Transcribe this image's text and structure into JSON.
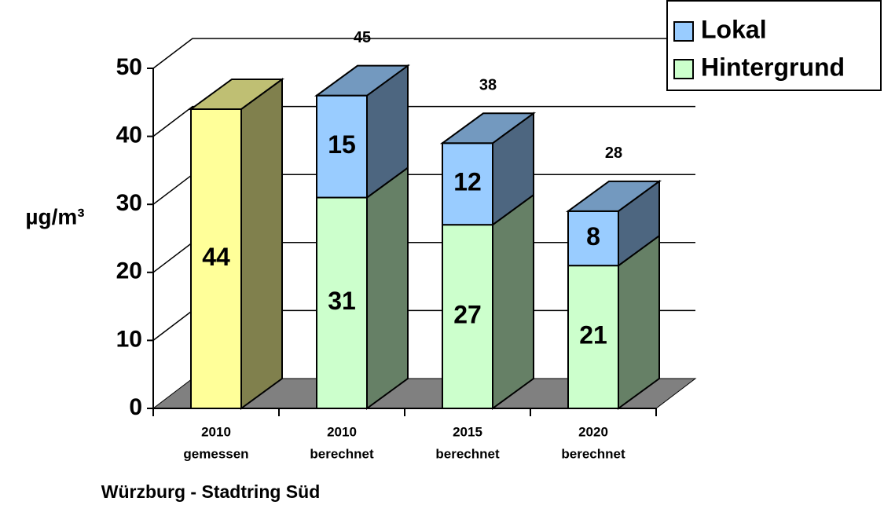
{
  "chart_data": {
    "type": "bar3d_stacked",
    "title": "Würzburg - Stadtring Süd",
    "ylabel": "µg/m³",
    "categories": [
      [
        "2010",
        "gemessen"
      ],
      [
        "2010",
        "berechnet"
      ],
      [
        "2015",
        "berechnet"
      ],
      [
        "2020",
        "berechnet"
      ]
    ],
    "series": [
      {
        "color": "#ffff99",
        "values": [
          44,
          null,
          null,
          null
        ]
      },
      {
        "name": "Hintergrund",
        "color": "#ccffcc",
        "values": [
          null,
          31,
          27,
          21
        ]
      },
      {
        "name": "Lokal",
        "color": "#99ccff",
        "values": [
          null,
          15,
          12,
          8
        ]
      }
    ],
    "totals": [
      null,
      45,
      38,
      28
    ],
    "ylim": [
      0,
      50
    ],
    "yticks": [
      0,
      10,
      20,
      30,
      40,
      50
    ],
    "grid": true,
    "legend": "top-right"
  }
}
